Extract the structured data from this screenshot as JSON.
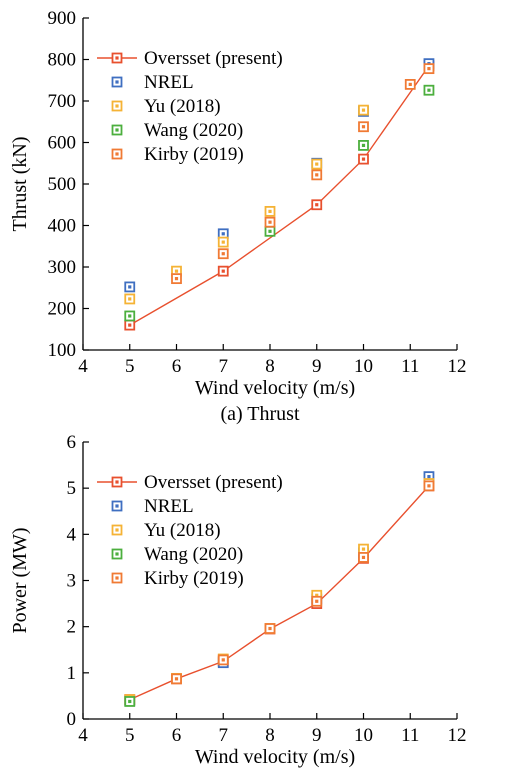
{
  "chart_data": [
    {
      "type": "line",
      "caption": "(a) Thrust",
      "xlabel": "Wind velocity (m/s)",
      "ylabel": "Thrust (kN)",
      "xlim": [
        4,
        12
      ],
      "ylim": [
        100,
        900
      ],
      "xticks": [
        4,
        5,
        6,
        7,
        8,
        9,
        10,
        11,
        12
      ],
      "yticks": [
        100,
        200,
        300,
        400,
        500,
        600,
        700,
        800,
        900
      ],
      "legend_position": "top-left",
      "series": [
        {
          "name": "Oversset (present)",
          "style": "line+markers",
          "color": "#e8502e",
          "x": [
            5,
            7,
            9,
            10,
            11.4
          ],
          "y": [
            160,
            290,
            450,
            560,
            785
          ]
        },
        {
          "name": "NREL",
          "style": "markers",
          "color": "#3f6fc1",
          "x": [
            5,
            7,
            9,
            10,
            11.4
          ],
          "y": [
            252,
            380,
            550,
            675,
            790
          ]
        },
        {
          "name": "Yu (2018)",
          "style": "markers",
          "color": "#f5b335",
          "x": [
            5,
            6,
            7,
            8,
            9,
            10
          ],
          "y": [
            223,
            290,
            360,
            434,
            548,
            678
          ]
        },
        {
          "name": "Wang (2020)",
          "style": "markers",
          "color": "#4caf3e",
          "x": [
            5,
            8,
            10,
            11.4
          ],
          "y": [
            182,
            386,
            593,
            726
          ]
        },
        {
          "name": "Kirby (2019)",
          "style": "markers",
          "color": "#f07a34",
          "x": [
            6,
            7,
            8,
            9,
            10,
            11,
            11.4
          ],
          "y": [
            272,
            332,
            408,
            522,
            638,
            740,
            778
          ]
        }
      ]
    },
    {
      "type": "line",
      "caption": "",
      "xlabel": "Wind velocity (m/s)",
      "ylabel": "Power (MW)",
      "xlim": [
        4,
        12
      ],
      "ylim": [
        0,
        6
      ],
      "xticks": [
        4,
        5,
        6,
        7,
        8,
        9,
        10,
        11,
        12
      ],
      "yticks": [
        0,
        1,
        2,
        3,
        4,
        5,
        6
      ],
      "legend_position": "top-left",
      "series": [
        {
          "name": "Oversset (present)",
          "style": "line+markers",
          "color": "#e8502e",
          "x": [
            5,
            6,
            7,
            8,
            9,
            10,
            11.4
          ],
          "y": [
            0.42,
            0.87,
            1.25,
            1.95,
            2.5,
            3.48,
            5.05
          ]
        },
        {
          "name": "NREL",
          "style": "markers",
          "color": "#3f6fc1",
          "x": [
            5,
            7,
            9,
            10,
            11.4
          ],
          "y": [
            0.4,
            1.22,
            2.6,
            3.6,
            5.25
          ]
        },
        {
          "name": "Yu (2018)",
          "style": "markers",
          "color": "#f5b335",
          "x": [
            5,
            6,
            7,
            8,
            9,
            10,
            11.4
          ],
          "y": [
            0.42,
            0.88,
            1.3,
            1.96,
            2.68,
            3.68,
            5.1
          ]
        },
        {
          "name": "Wang (2020)",
          "style": "markers",
          "color": "#4caf3e",
          "x": [
            5
          ],
          "y": [
            0.38
          ]
        },
        {
          "name": "Kirby (2019)",
          "style": "markers",
          "color": "#f07a34",
          "x": [
            6,
            7,
            8,
            9,
            10,
            11.4
          ],
          "y": [
            0.87,
            1.28,
            1.96,
            2.55,
            3.5,
            5.05
          ]
        }
      ]
    }
  ]
}
